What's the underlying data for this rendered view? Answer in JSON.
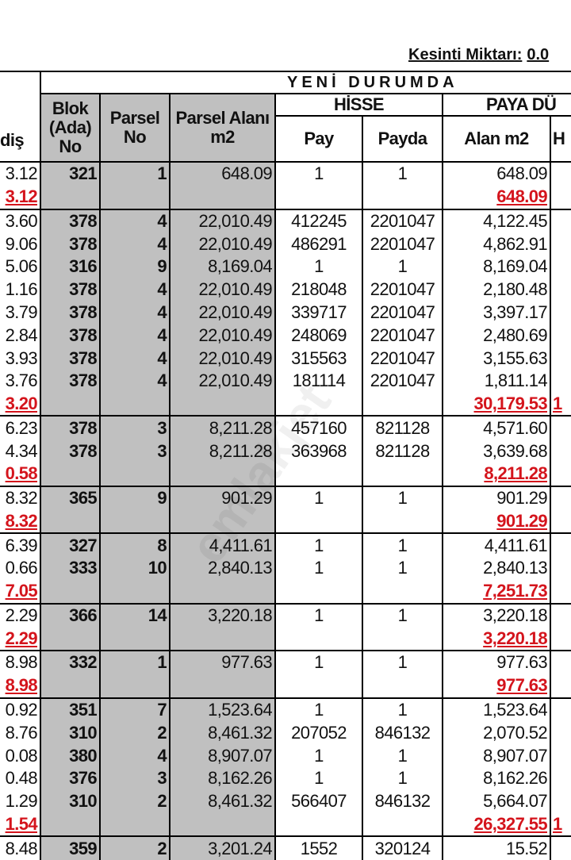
{
  "header": {
    "kesinti_label": "Kesinti Miktarı:",
    "kesinti_value": "0.0"
  },
  "table": {
    "banner": "YENİ DURUMDA",
    "hisse": "HİSSE",
    "paya": "PAYA DÜ",
    "columns": {
      "c0": "diş",
      "blok": "Blok (Ada) No",
      "parsel_no": "Parsel No",
      "parsel_alani": "Parsel Alanı m2",
      "pay": "Pay",
      "payda": "Payda",
      "alan": "Alan m2",
      "h": "H"
    },
    "rows": [
      {
        "c0": "3.12",
        "blok": "321",
        "no": "1",
        "pa": "648.09",
        "pay": "1",
        "payda": "1",
        "alan": "648.09"
      },
      {
        "total": true,
        "c0": "3.12",
        "alan": "648.09"
      },
      {
        "c0": "3.60",
        "blok": "378",
        "no": "4",
        "pa": "22,010.49",
        "pay": "412245",
        "payda": "2201047",
        "alan": "4,122.45"
      },
      {
        "c0": "9.06",
        "blok": "378",
        "no": "4",
        "pa": "22,010.49",
        "pay": "486291",
        "payda": "2201047",
        "alan": "4,862.91"
      },
      {
        "c0": "5.06",
        "blok": "316",
        "no": "9",
        "pa": "8,169.04",
        "pay": "1",
        "payda": "1",
        "alan": "8,169.04"
      },
      {
        "c0": "1.16",
        "blok": "378",
        "no": "4",
        "pa": "22,010.49",
        "pay": "218048",
        "payda": "2201047",
        "alan": "2,180.48"
      },
      {
        "c0": "3.79",
        "blok": "378",
        "no": "4",
        "pa": "22,010.49",
        "pay": "339717",
        "payda": "2201047",
        "alan": "3,397.17"
      },
      {
        "c0": "2.84",
        "blok": "378",
        "no": "4",
        "pa": "22,010.49",
        "pay": "248069",
        "payda": "2201047",
        "alan": "2,480.69"
      },
      {
        "c0": "3.93",
        "blok": "378",
        "no": "4",
        "pa": "22,010.49",
        "pay": "315563",
        "payda": "2201047",
        "alan": "3,155.63"
      },
      {
        "c0": "3.76",
        "blok": "378",
        "no": "4",
        "pa": "22,010.49",
        "pay": "181114",
        "payda": "2201047",
        "alan": "1,811.14"
      },
      {
        "total": true,
        "c0": "3.20",
        "alan": "30,179.53",
        "h": "1"
      },
      {
        "c0": "6.23",
        "blok": "378",
        "no": "3",
        "pa": "8,211.28",
        "pay": "457160",
        "payda": "821128",
        "alan": "4,571.60"
      },
      {
        "c0": "4.34",
        "blok": "378",
        "no": "3",
        "pa": "8,211.28",
        "pay": "363968",
        "payda": "821128",
        "alan": "3,639.68"
      },
      {
        "total": true,
        "c0": "0.58",
        "alan": "8,211.28"
      },
      {
        "c0": "8.32",
        "blok": "365",
        "no": "9",
        "pa": "901.29",
        "pay": "1",
        "payda": "1",
        "alan": "901.29"
      },
      {
        "total": true,
        "c0": "8.32",
        "alan": "901.29"
      },
      {
        "c0": "6.39",
        "blok": "327",
        "no": "8",
        "pa": "4,411.61",
        "pay": "1",
        "payda": "1",
        "alan": "4,411.61"
      },
      {
        "c0": "0.66",
        "blok": "333",
        "no": "10",
        "pa": "2,840.13",
        "pay": "1",
        "payda": "1",
        "alan": "2,840.13"
      },
      {
        "total": true,
        "c0": "7.05",
        "alan": "7,251.73"
      },
      {
        "c0": "2.29",
        "blok": "366",
        "no": "14",
        "pa": "3,220.18",
        "pay": "1",
        "payda": "1",
        "alan": "3,220.18"
      },
      {
        "total": true,
        "c0": "2.29",
        "alan": "3,220.18"
      },
      {
        "c0": "8.98",
        "blok": "332",
        "no": "1",
        "pa": "977.63",
        "pay": "1",
        "payda": "1",
        "alan": "977.63"
      },
      {
        "total": true,
        "c0": "8.98",
        "alan": "977.63"
      },
      {
        "c0": "0.92",
        "blok": "351",
        "no": "7",
        "pa": "1,523.64",
        "pay": "1",
        "payda": "1",
        "alan": "1,523.64"
      },
      {
        "c0": "8.76",
        "blok": "310",
        "no": "2",
        "pa": "8,461.32",
        "pay": "207052",
        "payda": "846132",
        "alan": "2,070.52"
      },
      {
        "c0": "0.08",
        "blok": "380",
        "no": "4",
        "pa": "8,907.07",
        "pay": "1",
        "payda": "1",
        "alan": "8,907.07"
      },
      {
        "c0": "0.48",
        "blok": "376",
        "no": "3",
        "pa": "8,162.26",
        "pay": "1",
        "payda": "1",
        "alan": "8,162.26"
      },
      {
        "c0": "1.29",
        "blok": "310",
        "no": "2",
        "pa": "8,461.32",
        "pay": "566407",
        "payda": "846132",
        "alan": "5,664.07"
      },
      {
        "total": true,
        "c0": "1.54",
        "alan": "26,327.55",
        "h": "1"
      },
      {
        "c0": "8.48",
        "blok": "359",
        "no": "2",
        "pa": "3,201.24",
        "pay": "1552",
        "payda": "320124",
        "alan": "15.52"
      }
    ]
  }
}
